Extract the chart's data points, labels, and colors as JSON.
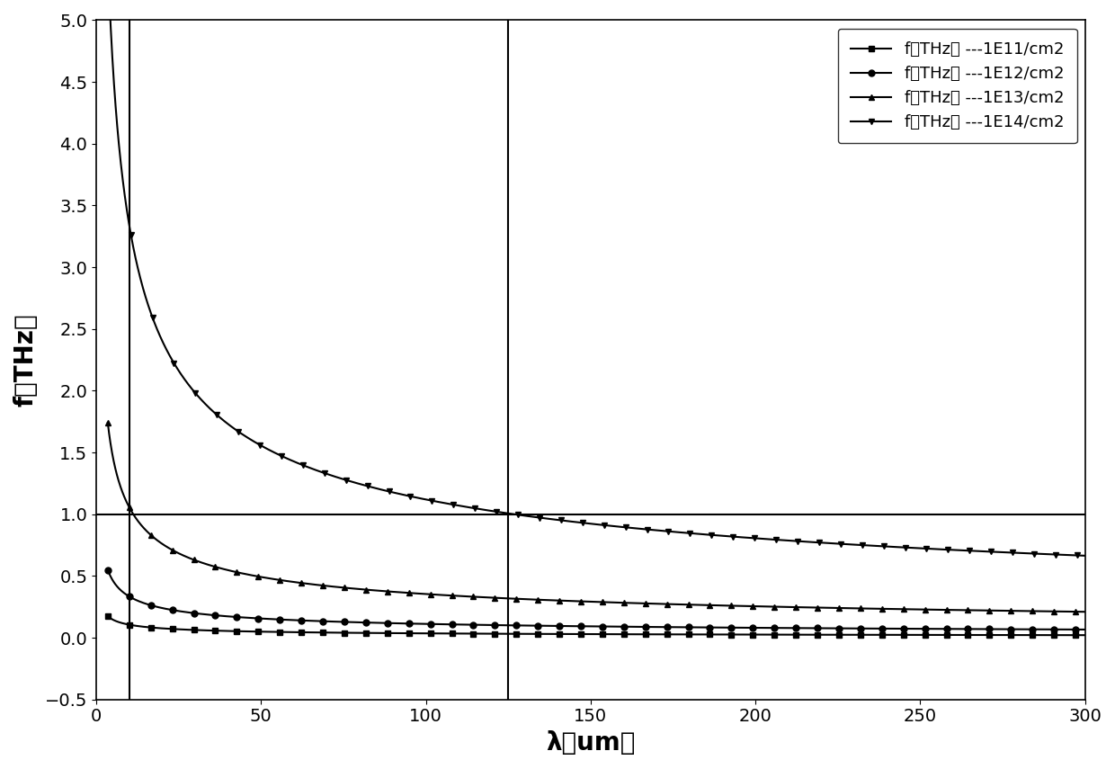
{
  "xlabel": "λ（um）",
  "ylabel": "f（THz）",
  "xlim": [
    0,
    300
  ],
  "ylim": [
    -0.5,
    5.0
  ],
  "yticks": [
    -0.5,
    0.0,
    0.5,
    1.0,
    1.5,
    2.0,
    2.5,
    3.0,
    3.5,
    4.0,
    4.5,
    5.0
  ],
  "xticks": [
    0,
    50,
    100,
    150,
    200,
    250,
    300
  ],
  "hline_y": 1.0,
  "vline_x1": 10.0,
  "vline_x2": 125.0,
  "series": [
    {
      "label": "f（THz） ---1E11/cm2",
      "n_density": 100000000000.0,
      "marker": "s",
      "K": 4.6e-06,
      "b": 0.95
    },
    {
      "label": "f（THz） ---1E12/cm2",
      "n_density": 1000000000000.0,
      "marker": "o",
      "K": 4.6e-06,
      "b": 0.95
    },
    {
      "label": "f（THz） ---1E13/cm2",
      "n_density": 10000000000000.0,
      "marker": "^",
      "K": 4.6e-06,
      "b": 0.95
    },
    {
      "label": "f（THz） ---1E14/cm2",
      "n_density": 100000000000000.0,
      "marker": "v",
      "K": 4.6e-06,
      "b": 0.95
    }
  ],
  "global_K": 4.55e-07,
  "global_b": 0.92,
  "global_alpha": 0.5,
  "lambda_start": 3.5,
  "lambda_end": 300,
  "n_points": 3000,
  "line_color": "#000000",
  "background_color": "#ffffff",
  "fontsize_label": 20,
  "fontsize_tick": 14,
  "fontsize_legend": 13,
  "linewidth": 1.5,
  "markersize": 5,
  "n_markers": 45
}
